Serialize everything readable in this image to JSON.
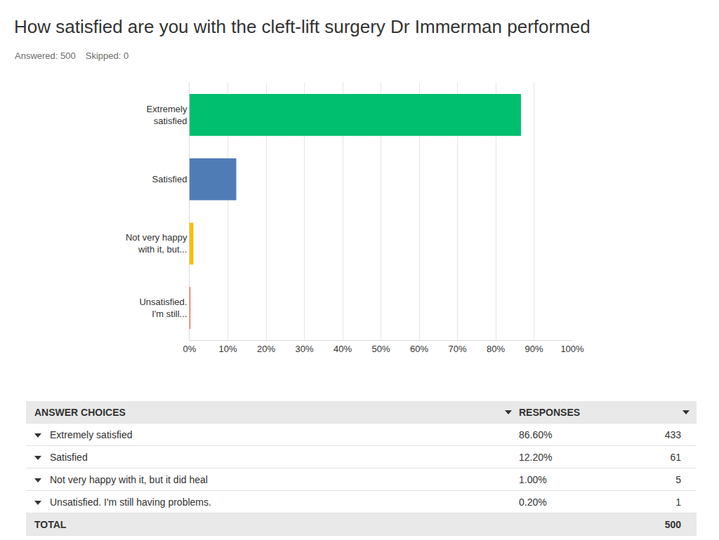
{
  "header": {
    "answered": "Answered: 500",
    "skipped": "Skipped: 0"
  },
  "chart_data": {
    "type": "bar",
    "orientation": "horizontal",
    "title": "How satisfied are you with the cleft-lift surgery Dr Immerman performed",
    "categories": [
      "Extremely satisfied",
      "Satisfied",
      "Not very happy with it, but...",
      "Unsatisfied. I'm still..."
    ],
    "values": [
      86.6,
      12.2,
      1.0,
      0.2
    ],
    "colors": [
      "#00bf6f",
      "#507cb6",
      "#f9be00",
      "#f05b24"
    ],
    "xlim": [
      0,
      100
    ],
    "xticks": [
      {
        "value": 0,
        "label": "0%"
      },
      {
        "value": 10,
        "label": "10%"
      },
      {
        "value": 20,
        "label": "20%"
      },
      {
        "value": 30,
        "label": "30%"
      },
      {
        "value": 40,
        "label": "40%"
      },
      {
        "value": 50,
        "label": "50%"
      },
      {
        "value": 60,
        "label": "60%"
      },
      {
        "value": 70,
        "label": "70%"
      },
      {
        "value": 80,
        "label": "80%"
      },
      {
        "value": 90,
        "label": "90%"
      },
      {
        "value": 100,
        "label": "100%"
      }
    ],
    "grid": true
  },
  "table": {
    "columns": [
      "ANSWER CHOICES",
      "RESPONSES"
    ],
    "rows": [
      [
        "Extremely satisfied",
        "86.60%",
        433
      ],
      [
        "Satisfied",
        "12.20%",
        61
      ],
      [
        "Not very happy with it, but it did heal",
        "1.00%",
        5
      ],
      [
        "Unsatisfied. I'm still having problems.",
        "0.20%",
        1
      ]
    ],
    "total": [
      "TOTAL",
      500
    ]
  }
}
